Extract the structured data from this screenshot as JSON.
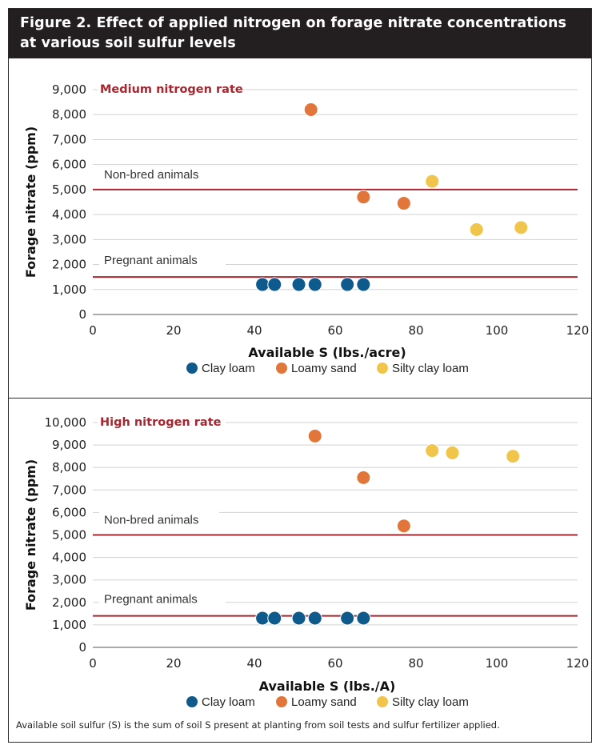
{
  "header": {
    "title_line1": "Figure 2. Effect of applied nitrogen on forage nitrate concentrations",
    "title_line2": "at various soil sulfur levels"
  },
  "colors": {
    "clay_loam": "#0f5a8c",
    "loamy_sand": "#e2763a",
    "silty_clay_loam": "#f1c44c",
    "threshold": "#a8262f",
    "panel_title": "#a8262f",
    "grid": "#d3d3d3"
  },
  "chart_data": [
    {
      "type": "scatter",
      "title": "Medium nitrogen rate",
      "xlabel": "Available S (lbs./acre)",
      "ylabel": "Forage nitrate (ppm)",
      "xlim": [
        0,
        120
      ],
      "ylim": [
        0,
        9000
      ],
      "x_ticks": [
        0,
        20,
        40,
        60,
        80,
        100,
        120
      ],
      "y_ticks": [
        0,
        1000,
        2000,
        3000,
        4000,
        5000,
        6000,
        7000,
        8000,
        9000
      ],
      "y_tick_labels": [
        "0",
        "1,000",
        "2,000",
        "3,000",
        "4,000",
        "5,000",
        "6,000",
        "7,000",
        "8,000",
        "9,000"
      ],
      "grid": true,
      "legend_position": "bottom",
      "thresholds": [
        {
          "label": "Non-bred animals",
          "y": 5000
        },
        {
          "label": "Pregnant animals",
          "y": 1500
        }
      ],
      "series": [
        {
          "name": "Clay loam",
          "x": [
            42,
            45,
            51,
            55,
            63,
            67
          ],
          "y": [
            1200,
            1200,
            1200,
            1200,
            1200,
            1200
          ]
        },
        {
          "name": "Loamy sand",
          "x": [
            54,
            67,
            77
          ],
          "y": [
            8200,
            4700,
            4450
          ]
        },
        {
          "name": "Silty clay loam",
          "x": [
            84,
            95,
            106
          ],
          "y": [
            5330,
            3400,
            3480
          ]
        }
      ]
    },
    {
      "type": "scatter",
      "title": "High nitrogen rate",
      "xlabel": "Available S (lbs./A)",
      "ylabel": "Forage nitrate (ppm)",
      "xlim": [
        0,
        120
      ],
      "ylim": [
        0,
        10000
      ],
      "x_ticks": [
        0,
        20,
        40,
        60,
        80,
        100,
        120
      ],
      "y_ticks": [
        0,
        1000,
        2000,
        3000,
        4000,
        5000,
        6000,
        7000,
        8000,
        9000,
        10000
      ],
      "y_tick_labels": [
        "0",
        "1,000",
        "2,000",
        "3,000",
        "4,000",
        "5,000",
        "6,000",
        "7,000",
        "8,000",
        "9,000",
        "10,000"
      ],
      "grid": true,
      "legend_position": "bottom",
      "thresholds": [
        {
          "label": "Non-bred animals",
          "y": 5000
        },
        {
          "label": "Pregnant animals",
          "y": 1400
        }
      ],
      "series": [
        {
          "name": "Clay loam",
          "x": [
            42,
            45,
            51,
            55,
            63,
            67
          ],
          "y": [
            1300,
            1300,
            1300,
            1300,
            1300,
            1300
          ]
        },
        {
          "name": "Loamy sand",
          "x": [
            55,
            67,
            77
          ],
          "y": [
            9400,
            7550,
            5400
          ]
        },
        {
          "name": "Silty clay loam",
          "x": [
            84,
            89,
            104
          ],
          "y": [
            8750,
            8650,
            8500
          ]
        }
      ]
    }
  ],
  "footnote": "Available soil sulfur (S) is the sum of soil S present at planting from soil tests and sulfur fertilizer applied."
}
